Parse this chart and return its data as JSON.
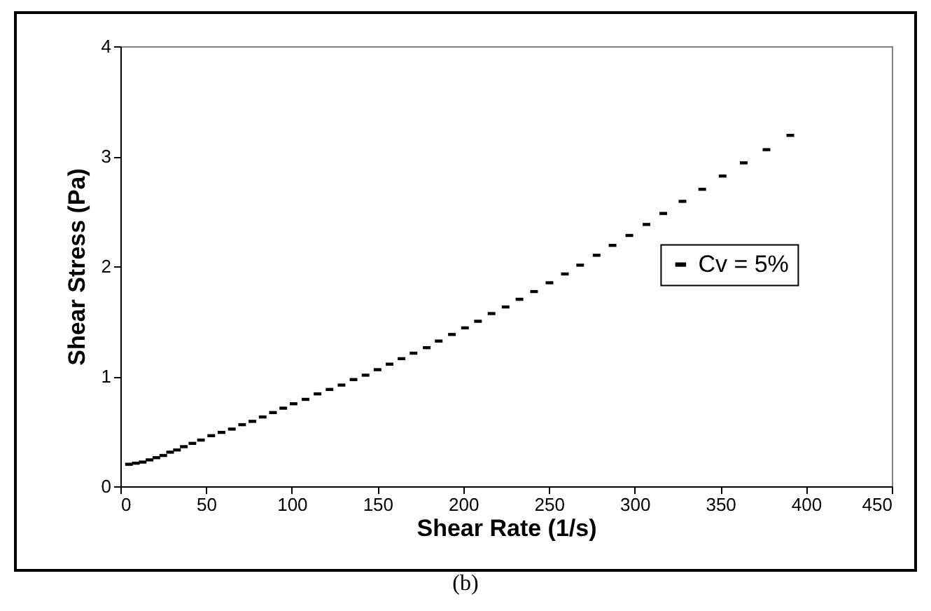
{
  "chart_data": {
    "type": "scatter",
    "xlabel": "Shear Rate (1/s)",
    "ylabel": "Shear Stress (Pa)",
    "x": [
      5,
      9,
      13,
      17,
      21,
      25,
      29,
      33,
      37,
      42,
      47,
      53,
      59,
      65,
      71,
      77,
      83,
      89,
      95,
      101,
      108,
      115,
      122,
      129,
      136,
      143,
      150,
      157,
      164,
      171,
      178.7,
      185.7,
      193.4,
      201,
      208.6,
      216.5,
      224.7,
      232.8,
      241.3,
      250.3,
      259.3,
      268.2,
      277.8,
      287.1,
      296.9,
      306.9,
      316.7,
      327.9,
      339.4,
      351.3,
      363.6,
      376.9,
      390.8
    ],
    "series": [
      {
        "name": "Cv = 5%",
        "color": "#000000",
        "values": [
          0.2,
          0.21,
          0.22,
          0.24,
          0.26,
          0.28,
          0.31,
          0.33,
          0.36,
          0.39,
          0.42,
          0.46,
          0.49,
          0.52,
          0.56,
          0.59,
          0.63,
          0.67,
          0.71,
          0.75,
          0.79,
          0.84,
          0.88,
          0.92,
          0.97,
          1.01,
          1.06,
          1.11,
          1.16,
          1.21,
          1.26,
          1.32,
          1.38,
          1.44,
          1.5,
          1.57,
          1.63,
          1.7,
          1.77,
          1.85,
          1.93,
          2.01,
          2.1,
          2.19,
          2.28,
          2.38,
          2.48,
          2.59,
          2.7,
          2.82,
          2.94,
          3.06,
          3.19
        ]
      }
    ],
    "xlim": [
      0,
      450
    ],
    "xticks": [
      0,
      50,
      100,
      150,
      200,
      250,
      300,
      350,
      400,
      450
    ],
    "ylim": [
      0,
      4
    ],
    "yticks": [
      0,
      1,
      2,
      3,
      4
    ],
    "legend": "right",
    "annotations": [
      "(b)"
    ]
  }
}
